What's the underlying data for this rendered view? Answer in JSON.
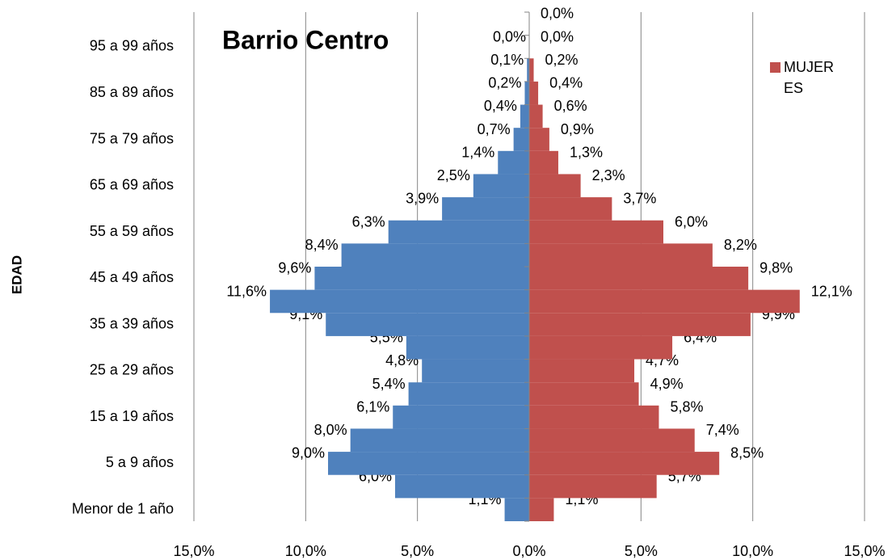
{
  "chart_data": {
    "type": "pyramid",
    "title": "Barrio Centro",
    "y_label": "EDAD",
    "categories": [
      "Menor de 1 año",
      null,
      "5 a 9 años",
      null,
      "15 a 19 años",
      null,
      "25 a 29 años",
      null,
      "35 a 39 años",
      null,
      "45 a 49 años",
      null,
      "55 a 59 años",
      null,
      "65 a 69 años",
      null,
      "75 a 79 años",
      null,
      "85 a 89 años",
      null,
      "95 a 99 años",
      null
    ],
    "series": [
      {
        "color": "#4f81bd",
        "values": [
          -1.1,
          -6.0,
          -9.0,
          -8.0,
          -6.1,
          -5.4,
          -4.8,
          -5.5,
          -9.1,
          -11.6,
          -9.6,
          -8.4,
          -6.3,
          -3.9,
          -2.5,
          -1.4,
          -0.7,
          -0.4,
          -0.2,
          -0.1,
          0.0,
          null
        ],
        "value_labels": [
          "1,1%",
          "6,0%",
          "9,0%",
          "8,0%",
          "6,1%",
          "5,4%",
          "4,8%",
          "5,5%",
          "9,1%",
          "11,6%",
          "9,6%",
          "8,4%",
          "6,3%",
          "3,9%",
          "2,5%",
          "1,4%",
          "0,7%",
          "0,4%",
          "0,2%",
          "0,1%",
          "0,0%",
          null
        ]
      },
      {
        "name": "MUJERES",
        "color": "#c0504d",
        "values": [
          1.1,
          5.7,
          8.5,
          7.4,
          5.8,
          4.9,
          4.7,
          6.4,
          9.9,
          12.1,
          9.8,
          8.2,
          6.0,
          3.7,
          2.3,
          1.3,
          0.9,
          0.6,
          0.4,
          0.2,
          0.0,
          0.0
        ],
        "value_labels": [
          "1,1%",
          "5,7%",
          "8,5%",
          "7,4%",
          "5,8%",
          "4,9%",
          "4,7%",
          "6,4%",
          "9,9%",
          "12,1%",
          "9,8%",
          "8,2%",
          "6,0%",
          "3,7%",
          "2,3%",
          "1,3%",
          "0,9%",
          "0,6%",
          "0,4%",
          "0,2%",
          "0,0%",
          "0,0%"
        ]
      }
    ],
    "xlim": [
      -15,
      15
    ],
    "xticks": [
      {
        "value": -15,
        "label": "15,0%"
      },
      {
        "value": -10,
        "label": "10,0%"
      },
      {
        "value": -5,
        "label": "5,0%"
      },
      {
        "value": 0,
        "label": "0,0%"
      },
      {
        "value": 5,
        "label": "5,0%"
      },
      {
        "value": 10,
        "label": "10,0%"
      },
      {
        "value": 15,
        "label": "15,0%"
      }
    ],
    "grid": true,
    "legend": "top-right"
  }
}
